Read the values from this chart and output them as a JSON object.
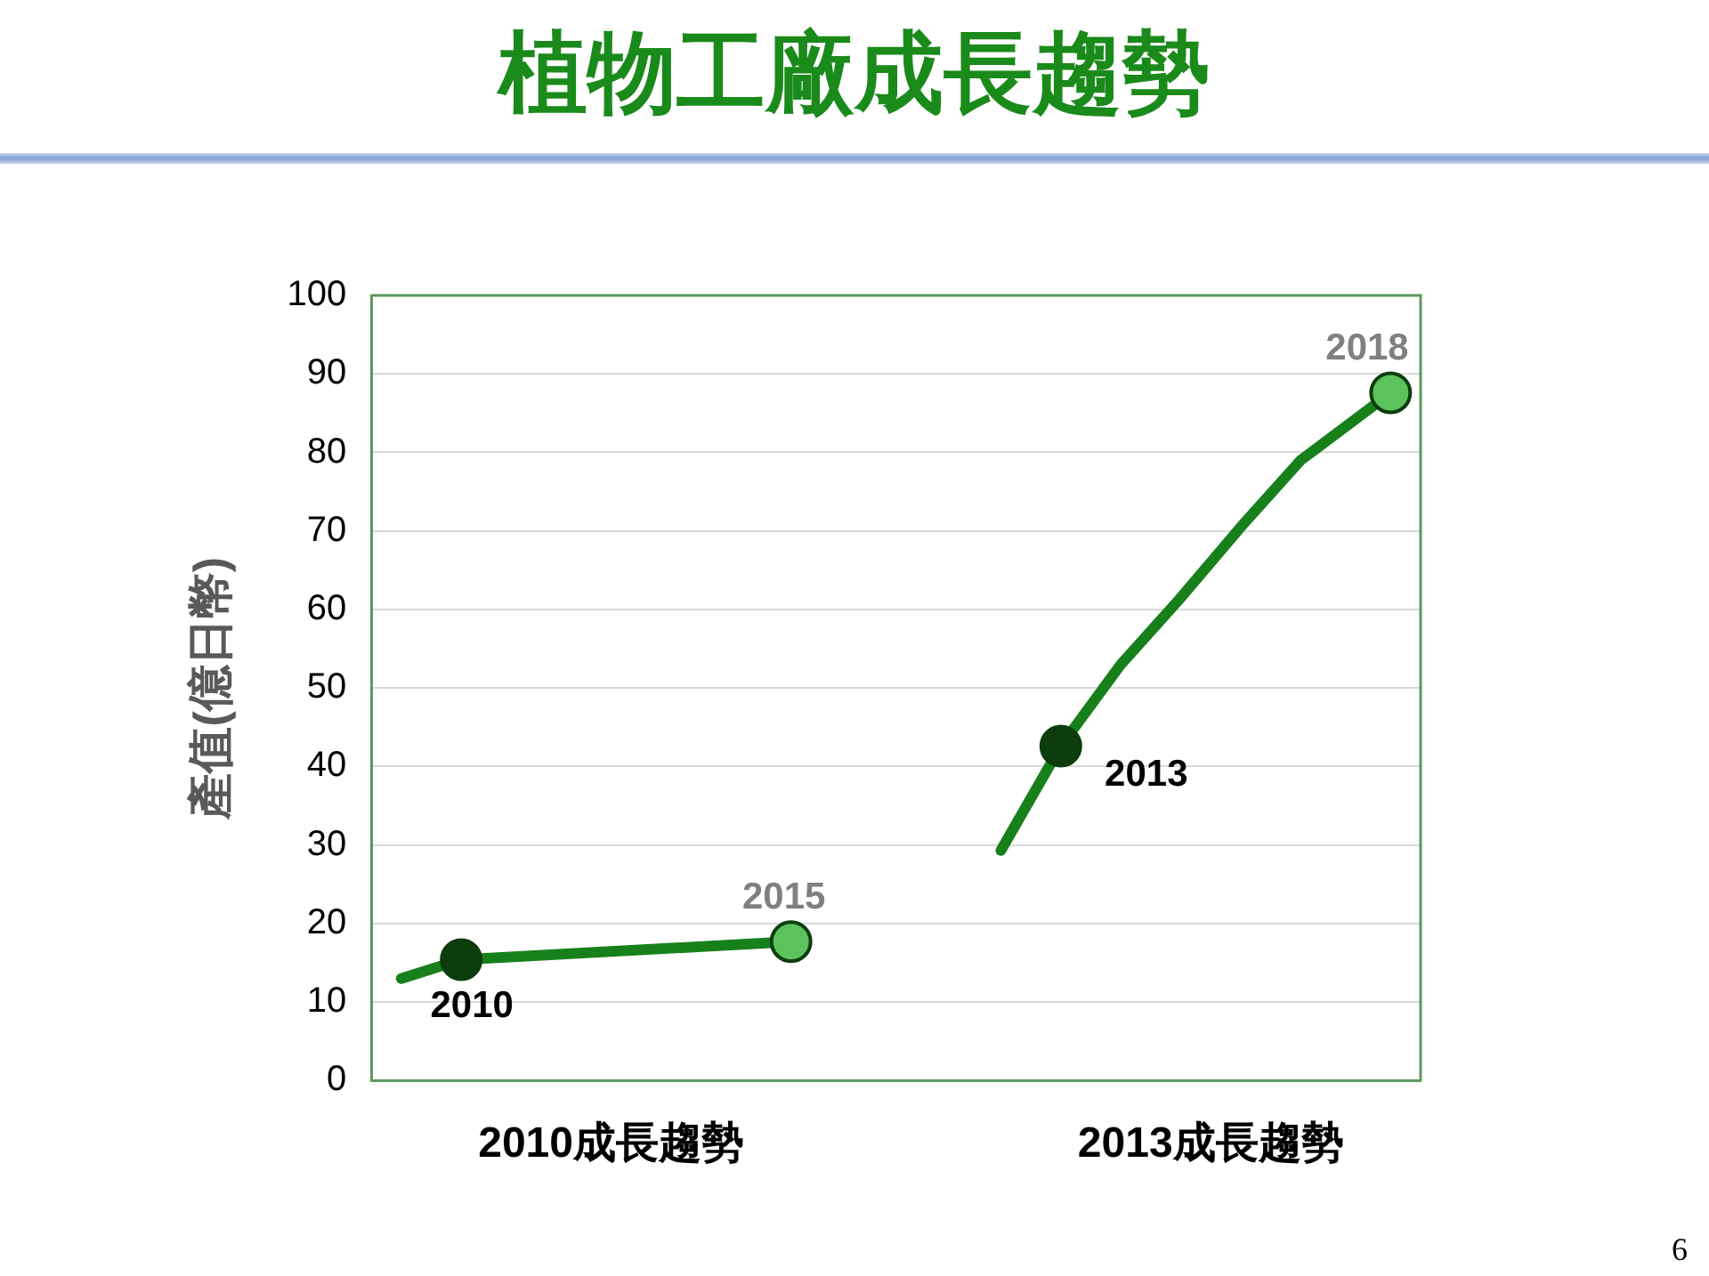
{
  "chart_data": {
    "type": "line",
    "title": "植物工廠成長趨勢",
    "ylabel": "產值(億日幣)",
    "categories": [
      null,
      null,
      null,
      null,
      null,
      null,
      null,
      null,
      "2010成長趨勢",
      null,
      null,
      null,
      null,
      null,
      null,
      null,
      null,
      null,
      null,
      null,
      null,
      null,
      null,
      null,
      null,
      null,
      null,
      null,
      "2013成長趨勢",
      null,
      null,
      null,
      null,
      null,
      null,
      null
    ],
    "series": [
      {
        "color": "#17801a",
        "marker": "none",
        "values": [
          null,
          13,
          null,
          15.4,
          null,
          null,
          null,
          null,
          null,
          null,
          null,
          null,
          null,
          null,
          17.7,
          null,
          null,
          null,
          null,
          null,
          null,
          null,
          null,
          null,
          null,
          null,
          null,
          null,
          null,
          null,
          null,
          null,
          null,
          null,
          null,
          null
        ]
      },
      {
        "color": "#17801a",
        "marker": "none",
        "values": [
          null,
          null,
          null,
          null,
          null,
          null,
          null,
          null,
          null,
          null,
          null,
          null,
          null,
          null,
          null,
          null,
          null,
          null,
          null,
          null,
          null,
          29.3,
          null,
          42.6,
          null,
          53,
          null,
          61.5,
          null,
          70.5,
          null,
          79,
          null,
          null,
          87.6,
          null
        ]
      },
      {
        "type": "scatter",
        "marker": "circle",
        "color": "#0d3d0d",
        "values": [
          null,
          null,
          null,
          15.4,
          null,
          null,
          null,
          null,
          null,
          null,
          null,
          null,
          null,
          null,
          17.7,
          null,
          null,
          null,
          null,
          null,
          null,
          null,
          null,
          42.6,
          null,
          null,
          null,
          null,
          null,
          null,
          null,
          null,
          null,
          null,
          87.6,
          null
        ],
        "colors": [
          null,
          null,
          null,
          "#0d3d0d",
          null,
          null,
          null,
          null,
          null,
          null,
          null,
          null,
          null,
          null,
          "#5cc25c",
          null,
          null,
          null,
          null,
          null,
          null,
          null,
          null,
          "#0d3d0d",
          null,
          null,
          null,
          null,
          null,
          null,
          null,
          null,
          null,
          null,
          "#5cc25c",
          null
        ]
      }
    ],
    "ylim": [
      0,
      100
    ],
    "yticks": [
      0,
      10,
      20,
      30,
      40,
      50,
      60,
      70,
      80,
      90,
      100
    ],
    "grid": "y",
    "legend": false,
    "annotations": [
      "2010",
      "2015",
      "2013",
      "2018",
      "6"
    ]
  }
}
